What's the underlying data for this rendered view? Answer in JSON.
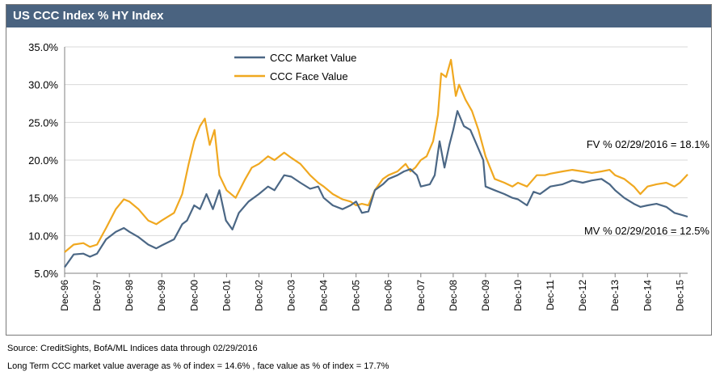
{
  "chart_data": {
    "type": "line",
    "title": "US CCC Index % HY Index",
    "xlabel": "",
    "ylabel": "",
    "ylim": [
      5.0,
      35.0
    ],
    "yticks": [
      "5.0%",
      "10.0%",
      "15.0%",
      "20.0%",
      "25.0%",
      "30.0%",
      "35.0%"
    ],
    "xlim": [
      1996.92,
      2016.16
    ],
    "xticks": [
      "Dec-96",
      "Dec-97",
      "Dec-98",
      "Dec-99",
      "Dec-00",
      "Dec-01",
      "Dec-02",
      "Dec-03",
      "Dec-04",
      "Dec-05",
      "Dec-06",
      "Dec-07",
      "Dec-08",
      "Dec-09",
      "Dec-10",
      "Dec-11",
      "Dec-12",
      "Dec-13",
      "Dec-14",
      "Dec-15"
    ],
    "grid": true,
    "legend": "top-center",
    "series": [
      {
        "name": "CCC Market Value",
        "color": "#4b6785",
        "points": [
          [
            1996.92,
            5.8
          ],
          [
            1997.2,
            7.5
          ],
          [
            1997.5,
            7.6
          ],
          [
            1997.7,
            7.2
          ],
          [
            1997.92,
            7.6
          ],
          [
            1998.2,
            9.5
          ],
          [
            1998.5,
            10.5
          ],
          [
            1998.75,
            11.0
          ],
          [
            1998.92,
            10.5
          ],
          [
            1999.2,
            9.8
          ],
          [
            1999.5,
            8.8
          ],
          [
            1999.75,
            8.3
          ],
          [
            1999.92,
            8.7
          ],
          [
            2000.3,
            9.5
          ],
          [
            2000.55,
            11.5
          ],
          [
            2000.7,
            12.0
          ],
          [
            2000.92,
            14.0
          ],
          [
            2001.1,
            13.5
          ],
          [
            2001.3,
            15.5
          ],
          [
            2001.5,
            13.5
          ],
          [
            2001.7,
            16.0
          ],
          [
            2001.9,
            12.0
          ],
          [
            2002.1,
            10.8
          ],
          [
            2002.3,
            13.0
          ],
          [
            2002.6,
            14.5
          ],
          [
            2002.92,
            15.5
          ],
          [
            2003.2,
            16.5
          ],
          [
            2003.4,
            16.0
          ],
          [
            2003.7,
            18.0
          ],
          [
            2003.92,
            17.8
          ],
          [
            2004.2,
            17.0
          ],
          [
            2004.5,
            16.2
          ],
          [
            2004.75,
            16.5
          ],
          [
            2004.92,
            15.0
          ],
          [
            2005.2,
            14.0
          ],
          [
            2005.5,
            13.5
          ],
          [
            2005.75,
            14.0
          ],
          [
            2005.92,
            14.5
          ],
          [
            2006.1,
            13.0
          ],
          [
            2006.3,
            13.2
          ],
          [
            2006.5,
            16.0
          ],
          [
            2006.75,
            16.8
          ],
          [
            2006.92,
            17.5
          ],
          [
            2007.2,
            18.0
          ],
          [
            2007.4,
            18.5
          ],
          [
            2007.6,
            18.8
          ],
          [
            2007.8,
            18.0
          ],
          [
            2007.92,
            16.5
          ],
          [
            2008.2,
            16.8
          ],
          [
            2008.35,
            18.0
          ],
          [
            2008.5,
            22.5
          ],
          [
            2008.65,
            19.0
          ],
          [
            2008.8,
            22.0
          ],
          [
            2008.92,
            24.0
          ],
          [
            2009.05,
            26.5
          ],
          [
            2009.25,
            24.5
          ],
          [
            2009.45,
            24.0
          ],
          [
            2009.65,
            22.0
          ],
          [
            2009.85,
            20.0
          ],
          [
            2009.92,
            16.5
          ],
          [
            2010.2,
            16.0
          ],
          [
            2010.5,
            15.5
          ],
          [
            2010.75,
            15.0
          ],
          [
            2010.92,
            14.8
          ],
          [
            2011.2,
            14.0
          ],
          [
            2011.4,
            15.8
          ],
          [
            2011.6,
            15.5
          ],
          [
            2011.92,
            16.5
          ],
          [
            2012.3,
            16.8
          ],
          [
            2012.6,
            17.3
          ],
          [
            2012.92,
            17.0
          ],
          [
            2013.2,
            17.3
          ],
          [
            2013.5,
            17.5
          ],
          [
            2013.75,
            16.8
          ],
          [
            2013.92,
            16.0
          ],
          [
            2014.2,
            15.0
          ],
          [
            2014.5,
            14.2
          ],
          [
            2014.7,
            13.8
          ],
          [
            2014.92,
            14.0
          ],
          [
            2015.2,
            14.2
          ],
          [
            2015.5,
            13.8
          ],
          [
            2015.75,
            13.0
          ],
          [
            2015.92,
            12.8
          ],
          [
            2016.16,
            12.5
          ]
        ]
      },
      {
        "name": "CCC Face Value",
        "color": "#f0a820",
        "points": [
          [
            1996.92,
            7.8
          ],
          [
            1997.2,
            8.8
          ],
          [
            1997.5,
            9.0
          ],
          [
            1997.7,
            8.5
          ],
          [
            1997.92,
            8.8
          ],
          [
            1998.2,
            11.0
          ],
          [
            1998.5,
            13.5
          ],
          [
            1998.75,
            14.8
          ],
          [
            1998.92,
            14.5
          ],
          [
            1999.2,
            13.5
          ],
          [
            1999.5,
            12.0
          ],
          [
            1999.75,
            11.5
          ],
          [
            1999.92,
            12.0
          ],
          [
            2000.3,
            13.0
          ],
          [
            2000.55,
            15.5
          ],
          [
            2000.75,
            19.5
          ],
          [
            2000.92,
            22.5
          ],
          [
            2001.1,
            24.5
          ],
          [
            2001.25,
            25.5
          ],
          [
            2001.4,
            22.0
          ],
          [
            2001.55,
            24.0
          ],
          [
            2001.7,
            18.0
          ],
          [
            2001.92,
            16.0
          ],
          [
            2002.2,
            15.0
          ],
          [
            2002.5,
            17.5
          ],
          [
            2002.7,
            19.0
          ],
          [
            2002.92,
            19.5
          ],
          [
            2003.2,
            20.5
          ],
          [
            2003.4,
            20.0
          ],
          [
            2003.7,
            21.0
          ],
          [
            2003.92,
            20.3
          ],
          [
            2004.2,
            19.5
          ],
          [
            2004.5,
            18.0
          ],
          [
            2004.75,
            17.0
          ],
          [
            2004.92,
            16.5
          ],
          [
            2005.2,
            15.5
          ],
          [
            2005.5,
            14.8
          ],
          [
            2005.75,
            14.5
          ],
          [
            2005.92,
            14.0
          ],
          [
            2006.1,
            14.2
          ],
          [
            2006.3,
            14.0
          ],
          [
            2006.5,
            16.0
          ],
          [
            2006.75,
            17.5
          ],
          [
            2006.92,
            18.0
          ],
          [
            2007.2,
            18.5
          ],
          [
            2007.45,
            19.5
          ],
          [
            2007.6,
            18.5
          ],
          [
            2007.75,
            19.0
          ],
          [
            2007.92,
            20.0
          ],
          [
            2008.1,
            20.5
          ],
          [
            2008.3,
            22.5
          ],
          [
            2008.45,
            26.0
          ],
          [
            2008.55,
            31.5
          ],
          [
            2008.7,
            31.0
          ],
          [
            2008.85,
            33.3
          ],
          [
            2009.0,
            28.5
          ],
          [
            2009.1,
            30.0
          ],
          [
            2009.3,
            28.0
          ],
          [
            2009.5,
            26.5
          ],
          [
            2009.7,
            24.0
          ],
          [
            2009.92,
            20.5
          ],
          [
            2010.2,
            17.5
          ],
          [
            2010.5,
            17.0
          ],
          [
            2010.75,
            16.5
          ],
          [
            2010.92,
            17.0
          ],
          [
            2011.2,
            16.5
          ],
          [
            2011.5,
            18.0
          ],
          [
            2011.75,
            18.0
          ],
          [
            2011.92,
            18.2
          ],
          [
            2012.3,
            18.5
          ],
          [
            2012.6,
            18.7
          ],
          [
            2012.92,
            18.5
          ],
          [
            2013.2,
            18.3
          ],
          [
            2013.5,
            18.5
          ],
          [
            2013.75,
            18.7
          ],
          [
            2013.92,
            18.0
          ],
          [
            2014.2,
            17.5
          ],
          [
            2014.5,
            16.5
          ],
          [
            2014.7,
            15.5
          ],
          [
            2014.92,
            16.5
          ],
          [
            2015.2,
            16.8
          ],
          [
            2015.5,
            17.0
          ],
          [
            2015.75,
            16.5
          ],
          [
            2015.92,
            17.0
          ],
          [
            2016.16,
            18.1
          ]
        ]
      }
    ],
    "annotations": [
      {
        "text": "FV % 02/29/2016 = 18.1%",
        "series": "CCC Face Value"
      },
      {
        "text": "MV % 02/29/2016 = 12.5%",
        "series": "CCC Market Value"
      }
    ]
  },
  "notes": {
    "source": "Source: CreditSights, BofA/ML Indices  data through 02/29/2016",
    "long_term": "Long Term CCC market value average as % of index = 14.6% , face value as % of index = 17.7%"
  }
}
